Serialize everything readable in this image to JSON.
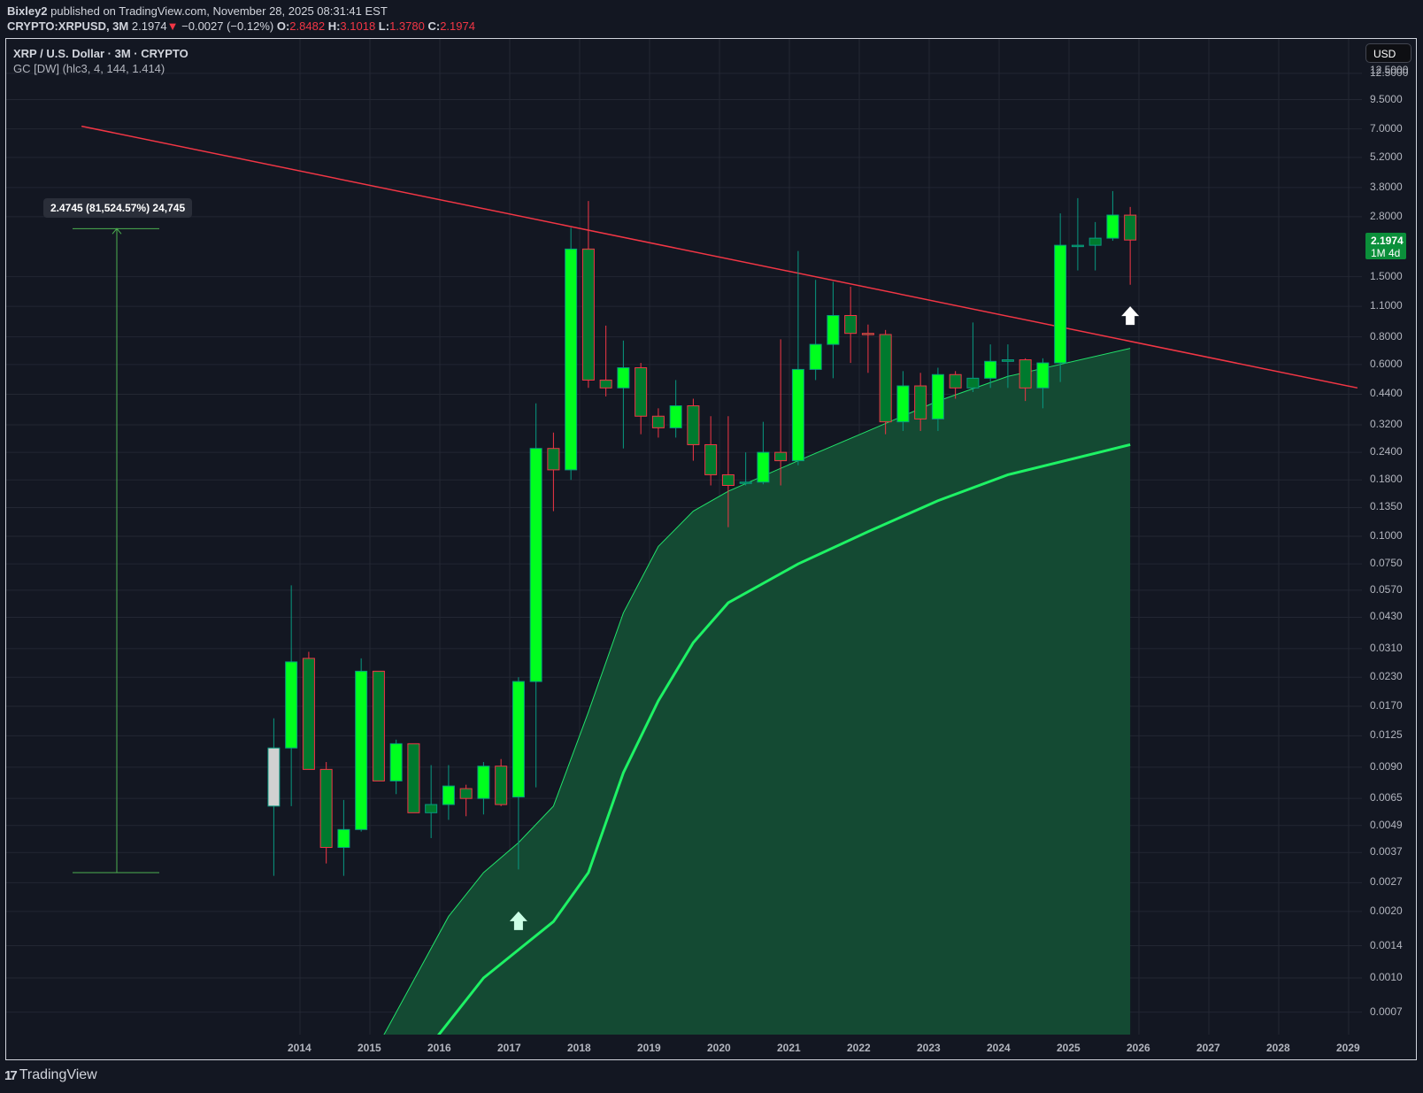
{
  "header": {
    "publisher": "Bixley2",
    "published_text": "published on TradingView.com, November 28, 2025 08:31:41 EST",
    "symbol": "CRYPTO:XRPUSD, 3M",
    "price": "2.1974",
    "change_arrow": "▼",
    "change": "−0.0027 (−0.12%)",
    "open_label": "O:",
    "open": "2.8482",
    "high_label": "H:",
    "high": "3.1018",
    "low_label": "L:",
    "low": "1.3780",
    "close_label": "C:",
    "close": "2.1974"
  },
  "legend": {
    "title": "XRP / U.S. Dollar · 3M · CRYPTO",
    "indicator": "GC [DW] (hlc3, 4, 144, 1.414)"
  },
  "currency_button": "USD",
  "last_price_tag": {
    "price": "2.1974",
    "countdown": "1M 4d"
  },
  "measure_label": "2.4745 (81,524.57%) 24,745",
  "brand": {
    "logo": "17",
    "name": "TradingView"
  },
  "colors": {
    "background": "#131722",
    "grid": "#232733",
    "up_body": "#00ff1e",
    "up_border": "#089981",
    "down_body": "#007a2e",
    "down_border": "#f23645",
    "trendline": "#f23645",
    "band_fill": "#144a33",
    "band_edge": "#21e26a",
    "midline": "#1ef265",
    "measure": "#4caf50",
    "last_price_tag": "#0b8f3a"
  },
  "chart_data": {
    "type": "candlestick",
    "title": "XRP / U.S. Dollar · 3M · CRYPTO",
    "scale": "log",
    "xlabel": "",
    "ylabel": "USD",
    "x_ticks": [
      "2014",
      "2015",
      "2016",
      "2017",
      "2018",
      "2019",
      "2020",
      "2021",
      "2022",
      "2023",
      "2024",
      "2025",
      "2026",
      "2027",
      "2028",
      "2029"
    ],
    "y_ticks": [
      "12.5000",
      "9.5000",
      "7.0000",
      "5.2000",
      "3.8000",
      "2.8000",
      "1.5000",
      "1.1000",
      "0.8000",
      "0.6000",
      "0.4400",
      "0.3200",
      "0.2400",
      "0.1800",
      "0.1350",
      "0.1000",
      "0.0750",
      "0.0570",
      "0.0430",
      "0.0310",
      "0.0230",
      "0.0170",
      "0.0125",
      "0.0090",
      "0.0065",
      "0.0049",
      "0.0037",
      "0.0027",
      "0.0020",
      "0.0014",
      "0.0010",
      "0.0007"
    ],
    "ylim": [
      0.0005,
      14
    ],
    "candles": [
      {
        "q": "2013Q3",
        "o": 0.006,
        "h": 0.015,
        "l": 0.0029,
        "c": 0.011,
        "gray": true
      },
      {
        "q": "2013Q4",
        "o": 0.011,
        "h": 0.06,
        "l": 0.006,
        "c": 0.027
      },
      {
        "q": "2014Q1",
        "o": 0.028,
        "h": 0.03,
        "l": 0.0088,
        "c": 0.0088
      },
      {
        "q": "2014Q2",
        "o": 0.0088,
        "h": 0.0095,
        "l": 0.0033,
        "c": 0.0039
      },
      {
        "q": "2014Q3",
        "o": 0.0039,
        "h": 0.0064,
        "l": 0.0029,
        "c": 0.0047
      },
      {
        "q": "2014Q4",
        "o": 0.0047,
        "h": 0.028,
        "l": 0.0046,
        "c": 0.0245
      },
      {
        "q": "2015Q1",
        "o": 0.0245,
        "h": 0.0245,
        "l": 0.0078,
        "c": 0.0078
      },
      {
        "q": "2015Q2",
        "o": 0.0078,
        "h": 0.012,
        "l": 0.0068,
        "c": 0.0115
      },
      {
        "q": "2015Q3",
        "o": 0.0115,
        "h": 0.0115,
        "l": 0.0056,
        "c": 0.0056
      },
      {
        "q": "2015Q4",
        "o": 0.0056,
        "h": 0.0092,
        "l": 0.0043,
        "c": 0.0061
      },
      {
        "q": "2016Q1",
        "o": 0.0061,
        "h": 0.0092,
        "l": 0.0052,
        "c": 0.0074
      },
      {
        "q": "2016Q2",
        "o": 0.0072,
        "h": 0.0075,
        "l": 0.0054,
        "c": 0.0065
      },
      {
        "q": "2016Q3",
        "o": 0.0065,
        "h": 0.0095,
        "l": 0.0055,
        "c": 0.0091
      },
      {
        "q": "2016Q4",
        "o": 0.0091,
        "h": 0.0098,
        "l": 0.006,
        "c": 0.0061
      },
      {
        "q": "2017Q1",
        "o": 0.0066,
        "h": 0.023,
        "l": 0.0031,
        "c": 0.022
      },
      {
        "q": "2017Q2",
        "o": 0.022,
        "h": 0.4,
        "l": 0.0073,
        "c": 0.25
      },
      {
        "q": "2017Q3",
        "o": 0.25,
        "h": 0.295,
        "l": 0.13,
        "c": 0.2
      },
      {
        "q": "2017Q4",
        "o": 0.2,
        "h": 2.5,
        "l": 0.18,
        "c": 2.0
      },
      {
        "q": "2018Q1",
        "o": 2.0,
        "h": 3.3,
        "l": 0.47,
        "c": 0.51
      },
      {
        "q": "2018Q2",
        "o": 0.51,
        "h": 0.9,
        "l": 0.43,
        "c": 0.47
      },
      {
        "q": "2018Q3",
        "o": 0.47,
        "h": 0.77,
        "l": 0.25,
        "c": 0.58
      },
      {
        "q": "2018Q4",
        "o": 0.58,
        "h": 0.61,
        "l": 0.29,
        "c": 0.35
      },
      {
        "q": "2019Q1",
        "o": 0.35,
        "h": 0.38,
        "l": 0.28,
        "c": 0.31
      },
      {
        "q": "2019Q2",
        "o": 0.31,
        "h": 0.51,
        "l": 0.28,
        "c": 0.39
      },
      {
        "q": "2019Q3",
        "o": 0.39,
        "h": 0.42,
        "l": 0.22,
        "c": 0.26
      },
      {
        "q": "2019Q4",
        "o": 0.26,
        "h": 0.35,
        "l": 0.17,
        "c": 0.19
      },
      {
        "q": "2020Q1",
        "o": 0.19,
        "h": 0.35,
        "l": 0.11,
        "c": 0.17
      },
      {
        "q": "2020Q2",
        "o": 0.175,
        "h": 0.24,
        "l": 0.17,
        "c": 0.176
      },
      {
        "q": "2020Q3",
        "o": 0.176,
        "h": 0.33,
        "l": 0.172,
        "c": 0.24
      },
      {
        "q": "2020Q4",
        "o": 0.24,
        "h": 0.78,
        "l": 0.17,
        "c": 0.22
      },
      {
        "q": "2021Q1",
        "o": 0.22,
        "h": 1.96,
        "l": 0.21,
        "c": 0.57
      },
      {
        "q": "2021Q2",
        "o": 0.57,
        "h": 1.45,
        "l": 0.51,
        "c": 0.74
      },
      {
        "q": "2021Q3",
        "o": 0.74,
        "h": 1.42,
        "l": 0.52,
        "c": 1.0
      },
      {
        "q": "2021Q4",
        "o": 1.0,
        "h": 1.35,
        "l": 0.61,
        "c": 0.83
      },
      {
        "q": "2022Q1",
        "o": 0.83,
        "h": 0.91,
        "l": 0.55,
        "c": 0.82
      },
      {
        "q": "2022Q2",
        "o": 0.82,
        "h": 0.86,
        "l": 0.29,
        "c": 0.33
      },
      {
        "q": "2022Q3",
        "o": 0.33,
        "h": 0.56,
        "l": 0.3,
        "c": 0.48
      },
      {
        "q": "2022Q4",
        "o": 0.48,
        "h": 0.55,
        "l": 0.3,
        "c": 0.34
      },
      {
        "q": "2023Q1",
        "o": 0.34,
        "h": 0.58,
        "l": 0.3,
        "c": 0.54
      },
      {
        "q": "2023Q2",
        "o": 0.54,
        "h": 0.56,
        "l": 0.42,
        "c": 0.47
      },
      {
        "q": "2023Q3",
        "o": 0.47,
        "h": 0.93,
        "l": 0.45,
        "c": 0.52
      },
      {
        "q": "2023Q4",
        "o": 0.52,
        "h": 0.74,
        "l": 0.47,
        "c": 0.62
      },
      {
        "q": "2024Q1",
        "o": 0.62,
        "h": 0.74,
        "l": 0.47,
        "c": 0.63
      },
      {
        "q": "2024Q2",
        "o": 0.63,
        "h": 0.64,
        "l": 0.41,
        "c": 0.47
      },
      {
        "q": "2024Q3",
        "o": 0.47,
        "h": 0.64,
        "l": 0.38,
        "c": 0.61
      },
      {
        "q": "2024Q4",
        "o": 0.61,
        "h": 2.9,
        "l": 0.5,
        "c": 2.08
      },
      {
        "q": "2025Q1",
        "o": 2.08,
        "h": 3.4,
        "l": 1.6,
        "c": 2.08
      },
      {
        "q": "2025Q2",
        "o": 2.08,
        "h": 2.65,
        "l": 1.6,
        "c": 2.24
      },
      {
        "q": "2025Q3",
        "o": 2.24,
        "h": 3.66,
        "l": 2.18,
        "c": 2.85
      },
      {
        "q": "2025Q4",
        "o": 2.8482,
        "h": 3.1018,
        "l": 1.378,
        "c": 2.1974
      }
    ],
    "indicator_band_upper": [
      {
        "x": "2015Q1",
        "y": 0.0005
      },
      {
        "x": "2016Q1",
        "y": 0.0019
      },
      {
        "x": "2016Q3",
        "y": 0.003
      },
      {
        "x": "2017Q1",
        "y": 0.0041
      },
      {
        "x": "2017Q3",
        "y": 0.006
      },
      {
        "x": "2018Q1",
        "y": 0.016
      },
      {
        "x": "2018Q3",
        "y": 0.045
      },
      {
        "x": "2019Q1",
        "y": 0.09
      },
      {
        "x": "2019Q3",
        "y": 0.13
      },
      {
        "x": "2020Q1",
        "y": 0.16
      },
      {
        "x": "2021Q1",
        "y": 0.22
      },
      {
        "x": "2022Q1",
        "y": 0.3
      },
      {
        "x": "2023Q1",
        "y": 0.41
      },
      {
        "x": "2024Q1",
        "y": 0.53
      },
      {
        "x": "2025Q4",
        "y": 0.71
      }
    ],
    "indicator_midline": [
      {
        "x": "2015Q4",
        "y": 0.0005
      },
      {
        "x": "2016Q3",
        "y": 0.001
      },
      {
        "x": "2017Q3",
        "y": 0.0018
      },
      {
        "x": "2018Q1",
        "y": 0.003
      },
      {
        "x": "2018Q3",
        "y": 0.0085
      },
      {
        "x": "2019Q1",
        "y": 0.018
      },
      {
        "x": "2019Q3",
        "y": 0.033
      },
      {
        "x": "2020Q1",
        "y": 0.05
      },
      {
        "x": "2021Q1",
        "y": 0.075
      },
      {
        "x": "2022Q1",
        "y": 0.105
      },
      {
        "x": "2023Q1",
        "y": 0.145
      },
      {
        "x": "2024Q1",
        "y": 0.19
      },
      {
        "x": "2025Q4",
        "y": 0.26
      }
    ],
    "trendline": {
      "from": {
        "x": "2010Q4",
        "y": 7.2
      },
      "to": {
        "x": "2029Q1",
        "y": 0.47
      }
    },
    "annotations": [
      {
        "type": "measure",
        "from": 0.003,
        "to": 2.4745,
        "label": "2.4745 (81,524.57%) 24,745"
      },
      {
        "type": "arrow_up",
        "x": "2017Q1",
        "y": 0.002,
        "color": "#ccffe6"
      },
      {
        "type": "arrow_up",
        "x": "2025Q4",
        "y": 1.1,
        "color": "#ffffff"
      }
    ],
    "legend_position": "top-left",
    "grid": true
  }
}
